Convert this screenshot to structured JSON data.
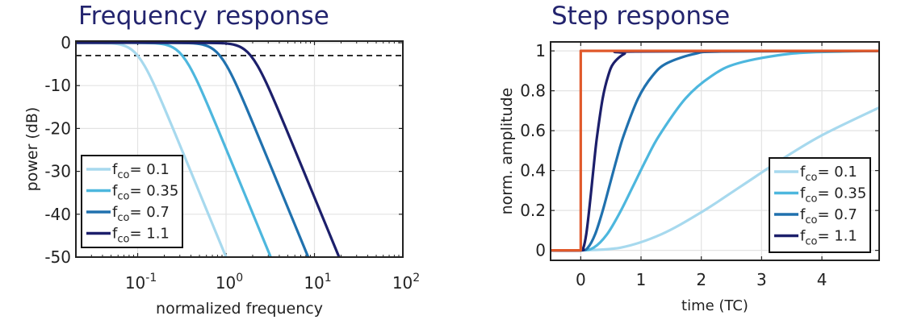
{
  "colors": {
    "title": "#23246e",
    "fco_0_1": "#a7d9ee",
    "fco_0_35": "#4db7de",
    "fco_0_7": "#2071ae",
    "fco_1_1": "#1c1f6b",
    "step_input": "#e0592a"
  },
  "chart_data": [
    {
      "type": "line",
      "title": "Frequency response",
      "xlabel": "normalized frequency",
      "ylabel": "power (dB)",
      "xscale": "log",
      "xlim": [
        0.02,
        100
      ],
      "ylim": [
        -50,
        1
      ],
      "xticks": [
        0.1,
        1,
        10,
        100
      ],
      "xtick_labels": [
        {
          "base": "10",
          "exp": "-1"
        },
        {
          "base": "10",
          "exp": "0"
        },
        {
          "base": "10",
          "exp": "1"
        },
        {
          "base": "10",
          "exp": "2"
        }
      ],
      "yticks": [
        0,
        -10,
        -20,
        -30,
        -40,
        -50
      ],
      "ytick_labels": [
        "0",
        "-10",
        "-20",
        "-30",
        "-40",
        "-50"
      ],
      "grid": true,
      "legend_position": "bottom-left",
      "reference_line": {
        "y": -3,
        "style": "dashed",
        "color": "#000000"
      },
      "series": [
        {
          "name": "f_co= 0.1",
          "label_main": "f",
          "label_sub": "co",
          "label_val": "= 0.1",
          "color": "#a7d9ee",
          "x": [
            0.02,
            0.05,
            0.07,
            0.085,
            0.1,
            0.12,
            0.15,
            0.2,
            0.3,
            0.4,
            0.5,
            0.7,
            1.0
          ],
          "y": [
            -0.001,
            -0.13,
            -0.67,
            -1.59,
            -3.01,
            -5.43,
            -9.34,
            -15.19,
            -23.87,
            -30.1,
            -34.95,
            -42.26,
            -50
          ]
        },
        {
          "name": "f_co= 0.35",
          "label_main": "f",
          "label_sub": "co",
          "label_val": "= 0.35",
          "color": "#4db7de",
          "x": [
            0.02,
            0.064,
            0.16,
            0.224,
            0.272,
            0.32,
            0.384,
            0.48,
            0.64,
            0.96,
            1.28,
            1.6,
            2.24,
            3.2
          ],
          "y": [
            0,
            -0.001,
            -0.13,
            -0.67,
            -1.59,
            -3.01,
            -5.43,
            -9.34,
            -15.19,
            -23.87,
            -30.1,
            -34.95,
            -42.26,
            -50
          ]
        },
        {
          "name": "f_co= 0.7",
          "label_main": "f",
          "label_sub": "co",
          "label_val": "= 0.7",
          "color": "#2071ae",
          "x": [
            0.02,
            0.17,
            0.425,
            0.595,
            0.7225,
            0.85,
            1.02,
            1.275,
            1.7,
            2.55,
            3.4,
            4.25,
            5.95,
            8.5
          ],
          "y": [
            0,
            -0.001,
            -0.13,
            -0.67,
            -1.59,
            -3.01,
            -5.43,
            -9.34,
            -15.19,
            -23.87,
            -30.1,
            -34.95,
            -42.26,
            -50
          ]
        },
        {
          "name": "f_co= 1.1",
          "label_main": "f",
          "label_sub": "co",
          "label_val": "= 1.1",
          "color": "#1c1f6b",
          "x": [
            0.02,
            0.38,
            0.95,
            1.33,
            1.615,
            1.9,
            2.28,
            2.85,
            3.8,
            5.7,
            7.6,
            9.5,
            13.3,
            19
          ],
          "y": [
            0,
            -0.001,
            -0.13,
            -0.67,
            -1.59,
            -3.01,
            -5.43,
            -9.34,
            -15.19,
            -23.87,
            -30.1,
            -34.95,
            -42.26,
            -50
          ]
        }
      ]
    },
    {
      "type": "line",
      "title": "Step response",
      "xlabel": "time (TC)",
      "ylabel": "norm. amplitude",
      "xlim": [
        -0.5,
        4.95
      ],
      "ylim": [
        -0.05,
        1.045
      ],
      "xticks": [
        0,
        1,
        2,
        3,
        4
      ],
      "xtick_labels": [
        "0",
        "1",
        "2",
        "3",
        "4"
      ],
      "yticks": [
        0,
        0.2,
        0.4,
        0.6,
        0.8,
        1
      ],
      "ytick_labels": [
        "0",
        "0.2",
        "0.4",
        "0.6",
        "0.8",
        "1"
      ],
      "grid": true,
      "legend_position": "bottom-right",
      "series": [
        {
          "name": "f_co= 0.1",
          "label_main": "f",
          "label_sub": "co",
          "label_val": "= 0.1",
          "color": "#a7d9ee",
          "x": [
            -0.5,
            0,
            0.667,
            1.333,
            2,
            2.667,
            3.333,
            4,
            4.95
          ],
          "y": [
            0,
            0,
            0.014,
            0.08,
            0.191,
            0.323,
            0.456,
            0.577,
            0.716
          ]
        },
        {
          "name": "f_co= 0.35",
          "label_main": "f",
          "label_sub": "co",
          "label_val": "= 0.35",
          "color": "#4db7de",
          "x": [
            -0.5,
            0,
            0.217,
            0.435,
            0.652,
            0.87,
            1.087,
            1.304,
            1.739,
            2.174,
            2.609,
            3.478,
            4.348,
            4.95
          ],
          "y": [
            0,
            0,
            0.014,
            0.08,
            0.191,
            0.323,
            0.456,
            0.577,
            0.762,
            0.875,
            0.938,
            0.986,
            0.997,
            1
          ]
        },
        {
          "name": "f_co= 0.7",
          "label_main": "f",
          "label_sub": "co",
          "label_val": "= 0.7",
          "color": "#2071ae",
          "x": [
            -0.5,
            0,
            0.119,
            0.238,
            0.357,
            0.476,
            0.595,
            0.714,
            0.952,
            1.19,
            1.429,
            1.905,
            2.381,
            4.95
          ],
          "y": [
            0,
            0,
            0.014,
            0.08,
            0.191,
            0.323,
            0.456,
            0.577,
            0.762,
            0.875,
            0.938,
            0.986,
            0.997,
            1
          ]
        },
        {
          "name": "f_co= 1.1",
          "label_main": "f",
          "label_sub": "co",
          "label_val": "= 1.1",
          "color": "#1c1f6b",
          "x": [
            -0.5,
            0,
            0.045,
            0.091,
            0.136,
            0.182,
            0.227,
            0.273,
            0.364,
            0.455,
            0.545,
            0.727,
            0.909,
            4.95
          ],
          "y": [
            0,
            0,
            0.014,
            0.08,
            0.191,
            0.323,
            0.456,
            0.577,
            0.762,
            0.875,
            0.938,
            0.986,
            0.997,
            1
          ]
        },
        {
          "color": "#e0592a",
          "style": "step-input",
          "x": [
            -0.5,
            0,
            0,
            4.95
          ],
          "y": [
            0,
            0,
            1,
            1
          ]
        }
      ]
    }
  ]
}
